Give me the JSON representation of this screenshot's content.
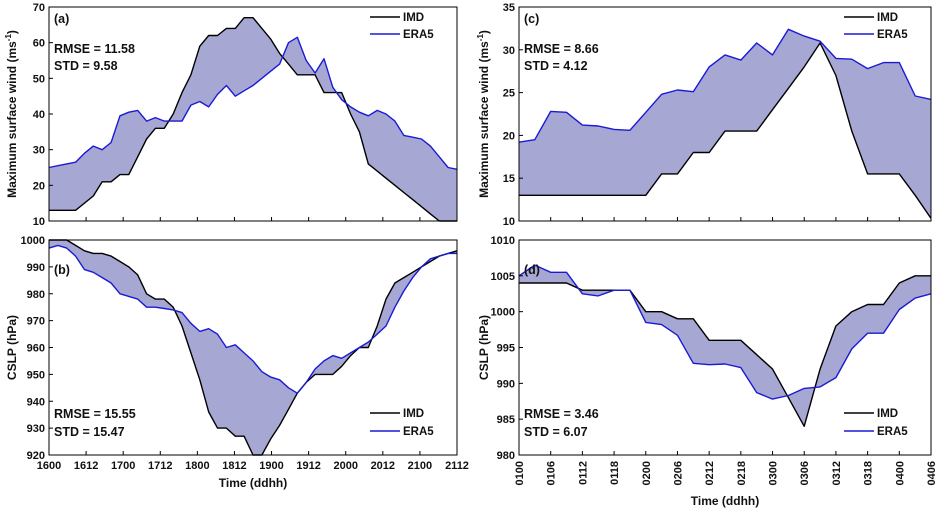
{
  "colors": {
    "imd": "#000000",
    "era5": "#1a1ad6",
    "fill": "#a7a7d4"
  },
  "chart_data": [
    {
      "id": "a",
      "type": "line",
      "panel_label": "(a)",
      "x_ticks": [
        "1600",
        "1612",
        "1700",
        "1712",
        "1800",
        "1812",
        "1900",
        "1912",
        "2000",
        "2012",
        "2100",
        "2112"
      ],
      "ylabel": "Maximum surface wind (ms",
      "ylabel_sup": "-1",
      "ylabel_end": ")",
      "ylim": [
        10,
        70
      ],
      "yticks": [
        "10",
        "20",
        "30",
        "40",
        "50",
        "60",
        "70"
      ],
      "stats": [
        "RMSE = 11.58",
        "STD = 9.58"
      ],
      "stats_pos": "top-left",
      "legend": [
        "IMD",
        "ERA5"
      ],
      "legend_pos": "top-right",
      "series": [
        {
          "name": "IMD",
          "x": [
            0,
            2,
            3,
            5,
            6,
            7,
            8,
            9,
            10,
            11,
            12,
            13,
            14,
            15,
            16,
            17,
            18,
            19,
            20,
            21,
            22,
            23,
            24,
            25,
            26,
            27,
            28,
            29,
            30,
            31,
            32,
            33,
            34,
            35,
            36,
            37,
            38,
            39,
            40,
            41,
            42,
            43,
            44,
            45,
            46
          ],
          "values": [
            13,
            13,
            13,
            17,
            21,
            21,
            23,
            23,
            28,
            33,
            36,
            36,
            40,
            46,
            51,
            59,
            62,
            62,
            64,
            64,
            67,
            67,
            64,
            61,
            57,
            54,
            51,
            51,
            51,
            46,
            46,
            46,
            40,
            35,
            26,
            24,
            22,
            20,
            18,
            16,
            14,
            12,
            10,
            10,
            10
          ]
        },
        {
          "name": "ERA5",
          "x": [
            0,
            1,
            2,
            3,
            4,
            5,
            6,
            7,
            8,
            9,
            10,
            11,
            12,
            13,
            14,
            15,
            16,
            17,
            18,
            19,
            20,
            21,
            22,
            23,
            24,
            25,
            26,
            27,
            28,
            29,
            30,
            31,
            32,
            33,
            34,
            35,
            36,
            37,
            38,
            39,
            40,
            41,
            42,
            43,
            44,
            45,
            46
          ],
          "values": [
            25,
            25.5,
            26,
            26.5,
            29,
            31,
            30,
            32,
            39.5,
            40.5,
            41,
            38,
            39,
            38,
            38,
            38,
            42.5,
            43.5,
            42,
            45.5,
            48,
            45,
            46.5,
            48,
            50,
            52,
            54,
            60,
            61.5,
            55,
            51.5,
            55.5,
            47.5,
            44,
            42,
            40.5,
            39.5,
            41,
            40,
            38,
            34,
            33.5,
            33,
            31,
            28,
            25,
            24.5
          ]
        }
      ]
    },
    {
      "id": "b",
      "type": "line",
      "panel_label": "(b)",
      "x_ticks": [
        "1600",
        "1612",
        "1700",
        "1712",
        "1800",
        "1812",
        "1900",
        "1912",
        "2000",
        "2012",
        "2100",
        "2112"
      ],
      "xlabel": "Time (ddhh)",
      "ylabel": "CSLP (hPa)",
      "ylim": [
        920,
        1000
      ],
      "yticks": [
        "920",
        "930",
        "940",
        "950",
        "960",
        "970",
        "980",
        "990",
        "1000"
      ],
      "stats": [
        "RMSE = 15.55",
        "STD = 15.47"
      ],
      "stats_pos": "bottom-left",
      "legend": [
        "IMD",
        "ERA5"
      ],
      "legend_pos": "bottom-right",
      "series": [
        {
          "name": "IMD",
          "x": [
            0,
            2,
            3,
            4,
            5,
            6,
            7,
            8,
            9,
            10,
            11,
            12,
            13,
            14,
            15,
            16,
            17,
            18,
            19,
            20,
            21,
            22,
            23,
            24,
            25,
            26,
            27,
            28,
            29,
            30,
            31,
            32,
            33,
            34,
            35,
            36,
            37,
            38,
            39,
            40,
            41,
            42,
            43,
            44,
            45,
            46
          ],
          "values": [
            1000,
            1000,
            998,
            996,
            995,
            995,
            994,
            992,
            990,
            987,
            980,
            978,
            978,
            975,
            968,
            958,
            948,
            936,
            930,
            930,
            927,
            927,
            920,
            920,
            926,
            931,
            937,
            943,
            947,
            950,
            950,
            950,
            953,
            957,
            960,
            960,
            968,
            978,
            984,
            986,
            988,
            990,
            992,
            994,
            995,
            996
          ]
        },
        {
          "name": "ERA5",
          "x": [
            0,
            1,
            2,
            3,
            4,
            5,
            6,
            7,
            8,
            9,
            10,
            11,
            12,
            13,
            14,
            15,
            16,
            17,
            18,
            19,
            20,
            21,
            22,
            23,
            24,
            25,
            26,
            27,
            28,
            29,
            30,
            31,
            32,
            33,
            34,
            35,
            36,
            37,
            38,
            39,
            40,
            41,
            42,
            43,
            44,
            45,
            46
          ],
          "values": [
            997,
            998,
            997,
            994,
            989,
            988,
            986,
            984,
            980,
            979,
            978,
            975,
            975,
            974.5,
            974,
            973,
            969,
            966,
            967,
            965,
            960,
            961,
            958,
            955,
            951,
            949,
            948,
            945,
            943,
            947,
            952,
            955,
            957,
            956,
            958,
            960,
            962,
            965,
            968,
            975,
            981,
            986,
            990,
            993,
            994,
            995,
            995
          ]
        }
      ]
    },
    {
      "id": "c",
      "type": "line",
      "panel_label": "(c)",
      "x_ticks": [
        "0100",
        "0106",
        "0112",
        "0118",
        "0200",
        "0206",
        "0212",
        "0218",
        "0300",
        "0306",
        "0312",
        "0318",
        "0400",
        "0406"
      ],
      "ylabel": "Maximum surface wind (ms",
      "ylabel_sup": "-1",
      "ylabel_end": ")",
      "ylim": [
        10,
        35
      ],
      "yticks": [
        "10",
        "15",
        "20",
        "25",
        "30",
        "35"
      ],
      "stats": [
        "RMSE = 8.66",
        "STD = 4.12"
      ],
      "stats_pos": "top-left",
      "legend": [
        "IMD",
        "ERA5"
      ],
      "legend_pos": "top-right",
      "series": [
        {
          "name": "IMD",
          "x": [
            0,
            3,
            6,
            9,
            12,
            15,
            18,
            21,
            24,
            27,
            30,
            33,
            36,
            39,
            42,
            45,
            48,
            51,
            54,
            57,
            60,
            63,
            66,
            69,
            72,
            75,
            78
          ],
          "values": [
            13,
            13,
            13,
            13,
            13,
            13,
            13,
            13,
            13,
            15.5,
            15.5,
            18,
            18,
            20.5,
            20.5,
            20.5,
            23,
            25.5,
            28,
            30.8,
            27,
            20.5,
            15.5,
            15.5,
            15.5,
            13,
            10.3
          ]
        },
        {
          "name": "ERA5",
          "x": [
            0,
            3,
            6,
            9,
            12,
            15,
            18,
            21,
            24,
            27,
            30,
            33,
            36,
            39,
            42,
            45,
            48,
            51,
            54,
            57,
            60,
            63,
            66,
            69,
            72,
            75,
            78
          ],
          "values": [
            19.2,
            19.5,
            22.8,
            22.7,
            21.2,
            21.1,
            20.7,
            20.6,
            22.7,
            24.8,
            25.3,
            25.1,
            28,
            29.4,
            28.8,
            30.8,
            29.4,
            32.4,
            31.6,
            31,
            29,
            28.9,
            27.8,
            28.5,
            28.5,
            24.6,
            24.2
          ]
        }
      ]
    },
    {
      "id": "d",
      "type": "line",
      "panel_label": "(d)",
      "x_ticks": [
        "0100",
        "0106",
        "0112",
        "0118",
        "0200",
        "0206",
        "0212",
        "0218",
        "0300",
        "0306",
        "0312",
        "0318",
        "0400",
        "0406"
      ],
      "xlabel": "Time (ddhh)",
      "ylabel": "CSLP (hPa)",
      "ylim": [
        980,
        1010
      ],
      "yticks": [
        "980",
        "985",
        "990",
        "995",
        "1000",
        "1005",
        "1010"
      ],
      "stats": [
        "RMSE = 3.46",
        "STD = 6.07"
      ],
      "stats_pos": "bottom-left",
      "legend": [
        "IMD",
        "ERA5"
      ],
      "legend_pos": "bottom-right",
      "series": [
        {
          "name": "IMD",
          "x": [
            0,
            3,
            6,
            9,
            12,
            15,
            18,
            21,
            24,
            27,
            30,
            33,
            36,
            39,
            42,
            45,
            48,
            51,
            54,
            57,
            60,
            63,
            66,
            69,
            72,
            75,
            78
          ],
          "values": [
            1004,
            1004,
            1004,
            1004,
            1003,
            1003,
            1003,
            1003,
            1000,
            1000,
            999,
            999,
            996,
            996,
            996,
            994,
            992,
            988,
            984,
            992,
            998,
            1000,
            1001,
            1001,
            1004,
            1005,
            1005
          ]
        },
        {
          "name": "ERA5",
          "x": [
            0,
            3,
            6,
            9,
            12,
            15,
            18,
            21,
            24,
            27,
            30,
            33,
            36,
            39,
            42,
            45,
            48,
            51,
            54,
            57,
            60,
            63,
            66,
            69,
            72,
            75,
            78
          ],
          "values": [
            1005,
            1006.5,
            1005.5,
            1005.5,
            1002.5,
            1002.2,
            1003,
            1003,
            998.5,
            998.2,
            996.7,
            992.8,
            992.6,
            992.7,
            992.2,
            988.7,
            987.8,
            988.3,
            989.3,
            989.5,
            990.8,
            994.8,
            997,
            997,
            1000.3,
            1001.9,
            1002.5
          ]
        }
      ]
    }
  ]
}
